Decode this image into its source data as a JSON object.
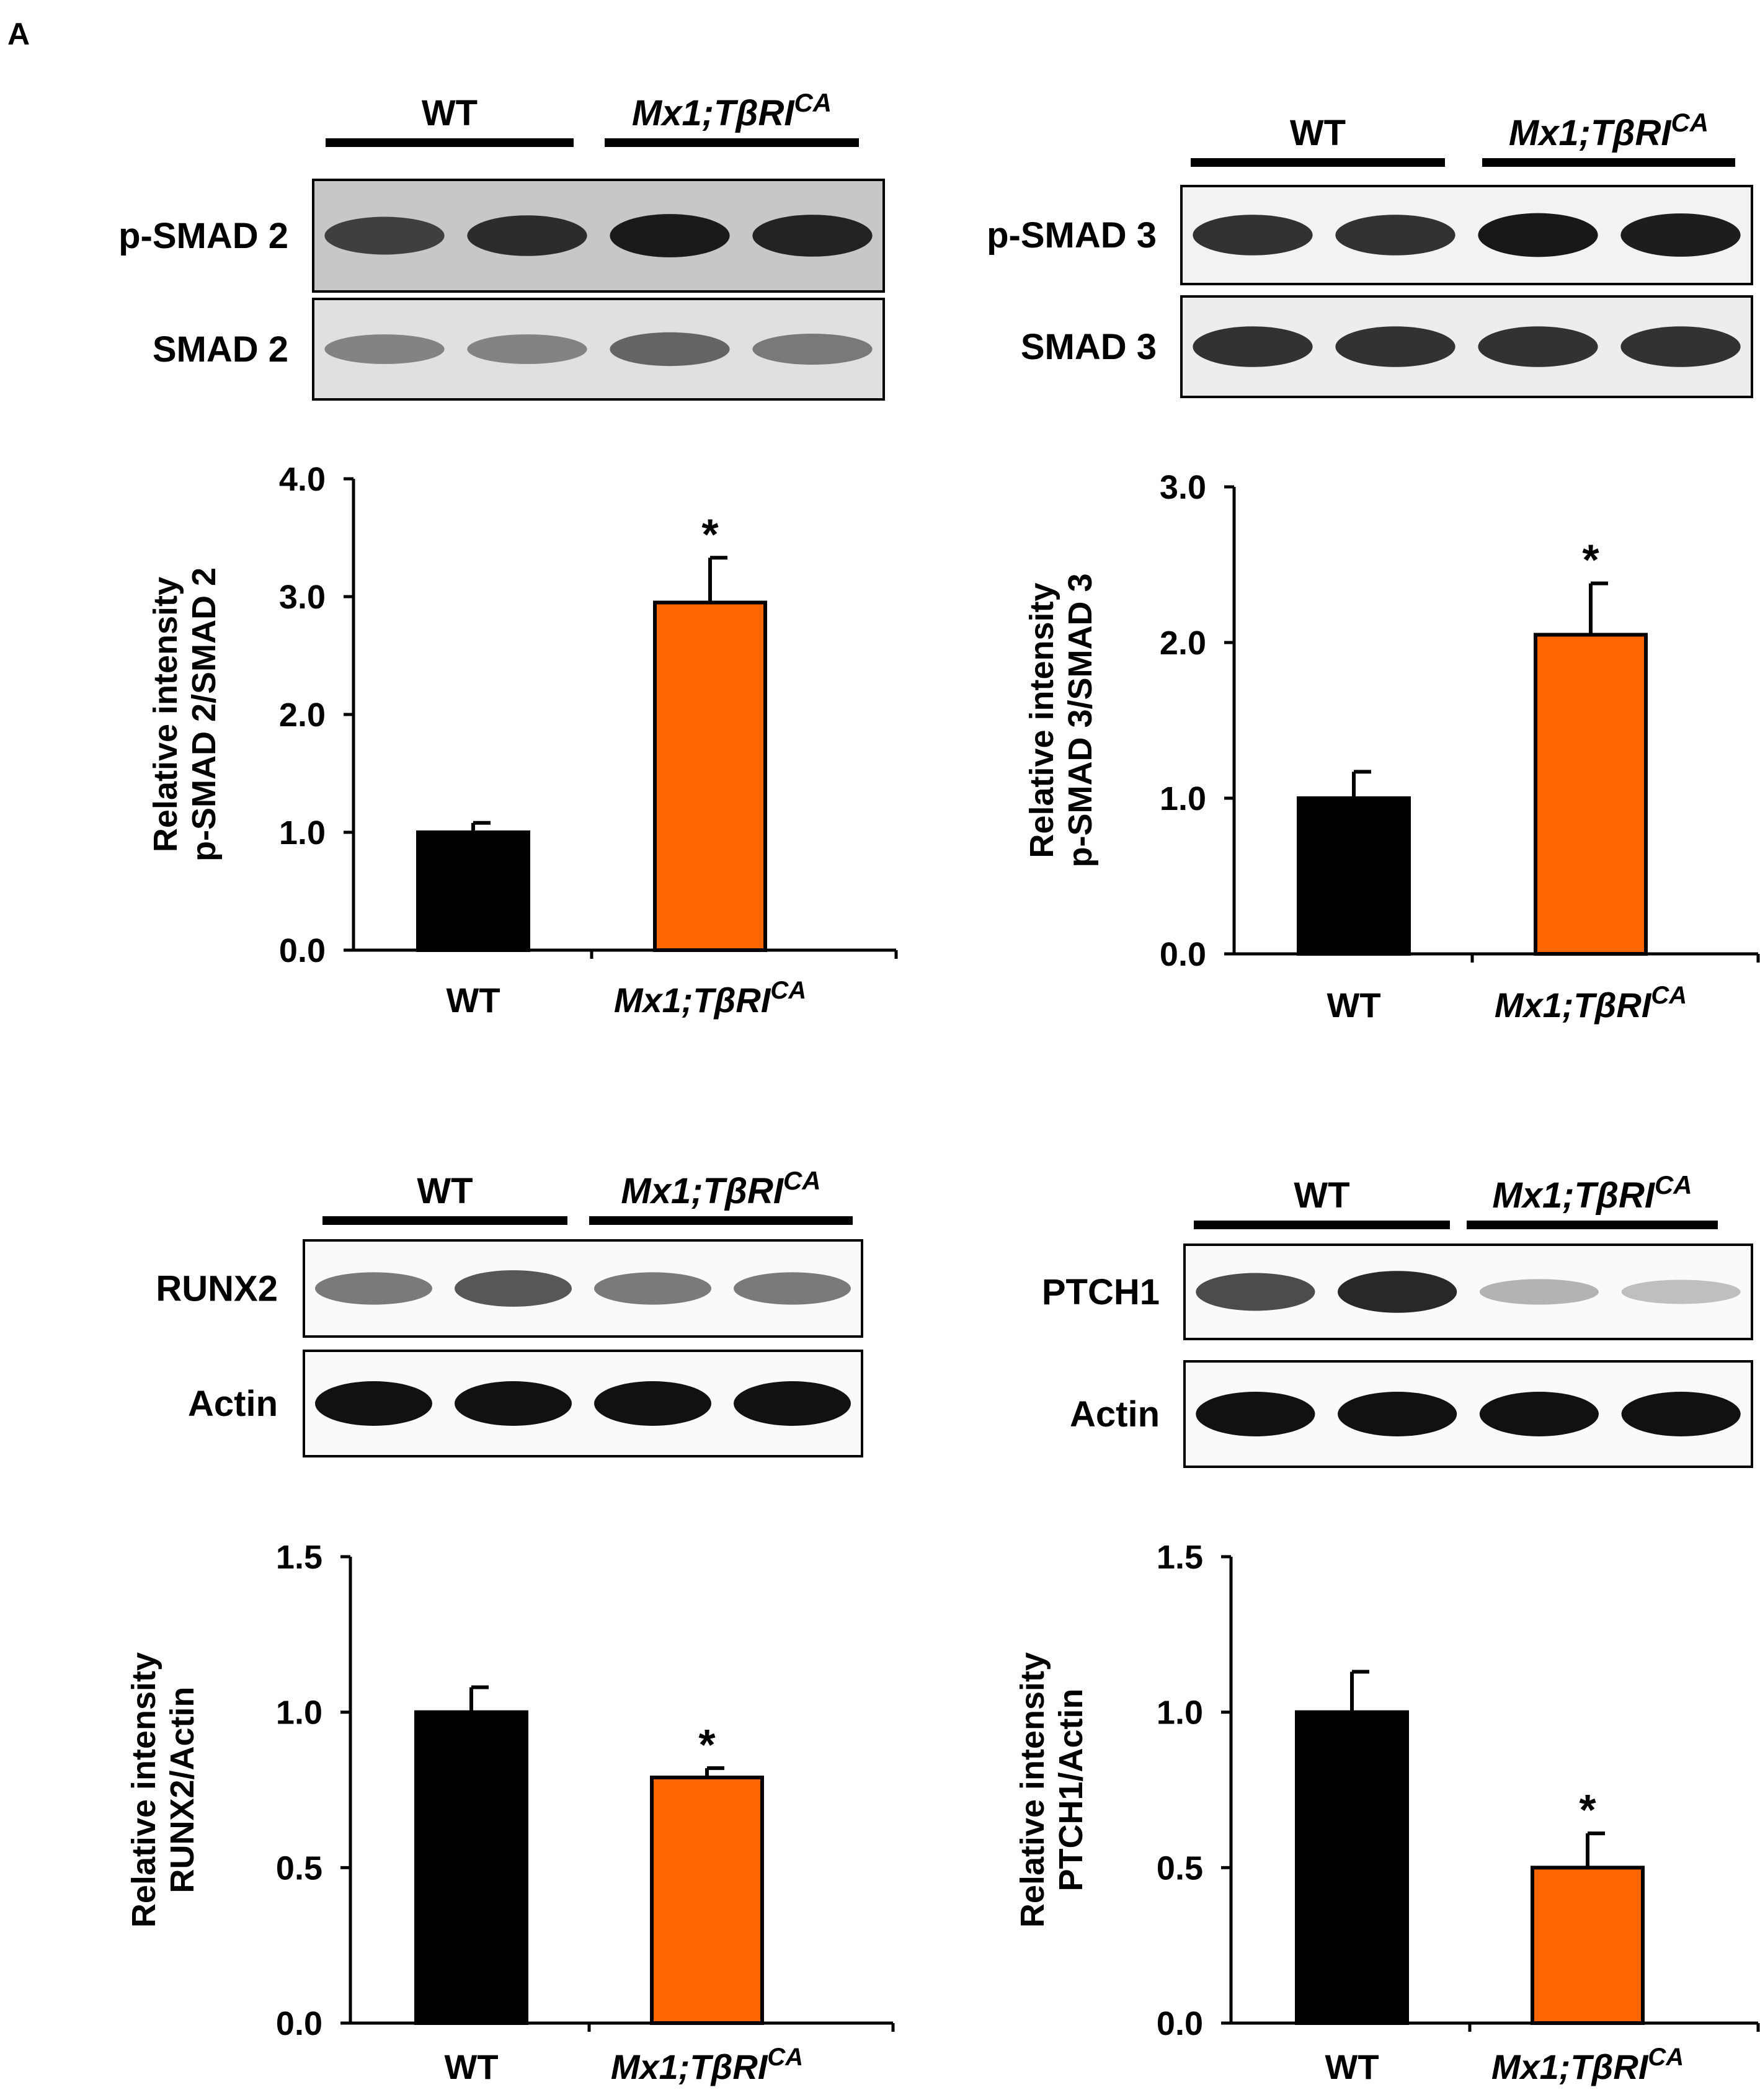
{
  "panel_label": "A",
  "colors": {
    "wt": "#000000",
    "mutant": "#ff6600",
    "band": "#1a1a1a",
    "blot_bg": "#ffffff"
  },
  "blots": [
    {
      "group_wt": "WT",
      "group_mut": {
        "base": "Mx1;TβRI",
        "sup": "CA"
      },
      "rows": [
        {
          "label": "p-SMAD 2",
          "intensities": [
            0.75,
            0.85,
            0.95,
            0.9
          ],
          "bg_gray": 0.78
        },
        {
          "label": "SMAD 2",
          "intensities": [
            0.45,
            0.45,
            0.6,
            0.5
          ],
          "bg_gray": 0.88
        }
      ]
    },
    {
      "group_wt": "WT",
      "group_mut": {
        "base": "Mx1;TβRI",
        "sup": "CA"
      },
      "rows": [
        {
          "label": "p-SMAD 3",
          "intensities": [
            0.85,
            0.85,
            0.97,
            0.95
          ],
          "bg_gray": 0.95
        },
        {
          "label": "SMAD 3",
          "intensities": [
            0.85,
            0.85,
            0.85,
            0.85
          ],
          "bg_gray": 0.93
        }
      ]
    },
    {
      "group_wt": "WT",
      "group_mut": {
        "base": "Mx1;TβRI",
        "sup": "CA"
      },
      "rows": [
        {
          "label": "RUNX2",
          "intensities": [
            0.55,
            0.7,
            0.55,
            0.55
          ],
          "bg_gray": 0.98
        },
        {
          "label": "Actin",
          "intensities": [
            1.0,
            1.0,
            1.0,
            1.0
          ],
          "bg_gray": 0.98
        }
      ]
    },
    {
      "group_wt": "WT",
      "group_mut": {
        "base": "Mx1;TβRI",
        "sup": "CA"
      },
      "rows": [
        {
          "label": "PTCH1",
          "intensities": [
            0.75,
            0.9,
            0.3,
            0.25
          ],
          "bg_gray": 0.98
        },
        {
          "label": "Actin",
          "intensities": [
            1.0,
            1.0,
            1.0,
            1.0
          ],
          "bg_gray": 0.98
        }
      ]
    }
  ],
  "chart_data": [
    {
      "type": "bar",
      "categories": [
        "WT",
        "Mx1;TβRI"
      ],
      "category_sup": [
        "",
        "CA"
      ],
      "values": [
        1.0,
        2.95
      ],
      "errors": [
        0.08,
        0.38
      ],
      "significance": [
        "",
        "*"
      ],
      "ylabel_lines": [
        "Relative intensity",
        "p-SMAD 2/SMAD 2"
      ],
      "ylim": [
        0,
        4.0
      ],
      "yticks": [
        0.0,
        1.0,
        2.0,
        3.0,
        4.0
      ],
      "ytick_labels": [
        "0.0",
        "1.0",
        "2.0",
        "3.0",
        "4.0"
      ]
    },
    {
      "type": "bar",
      "categories": [
        "WT",
        "Mx1;TβRI"
      ],
      "category_sup": [
        "",
        "CA"
      ],
      "values": [
        1.0,
        2.05
      ],
      "errors": [
        0.17,
        0.33
      ],
      "significance": [
        "",
        "*"
      ],
      "ylabel_lines": [
        "Relative intensity",
        "p-SMAD 3/SMAD 3"
      ],
      "ylim": [
        0,
        3.0
      ],
      "yticks": [
        0.0,
        1.0,
        2.0,
        3.0
      ],
      "ytick_labels": [
        "0.0",
        "1.0",
        "2.0",
        "3.0"
      ]
    },
    {
      "type": "bar",
      "categories": [
        "WT",
        "Mx1;TβRI"
      ],
      "category_sup": [
        "",
        "CA"
      ],
      "values": [
        1.0,
        0.79
      ],
      "errors": [
        0.08,
        0.03
      ],
      "significance": [
        "",
        "*"
      ],
      "ylabel_lines": [
        "Relative intensity",
        "RUNX2/Actin"
      ],
      "ylim": [
        0,
        1.5
      ],
      "yticks": [
        0.0,
        0.5,
        1.0,
        1.5
      ],
      "ytick_labels": [
        "0.0",
        "0.5",
        "1.0",
        "1.5"
      ]
    },
    {
      "type": "bar",
      "categories": [
        "WT",
        "Mx1;TβRI"
      ],
      "category_sup": [
        "",
        "CA"
      ],
      "values": [
        1.0,
        0.5
      ],
      "errors": [
        0.13,
        0.11
      ],
      "significance": [
        "",
        "*"
      ],
      "ylabel_lines": [
        "Relative intensity",
        "PTCH1/Actin"
      ],
      "ylim": [
        0,
        1.5
      ],
      "yticks": [
        0.0,
        0.5,
        1.0,
        1.5
      ],
      "ytick_labels": [
        "0.0",
        "0.5",
        "1.0",
        "1.5"
      ]
    }
  ]
}
